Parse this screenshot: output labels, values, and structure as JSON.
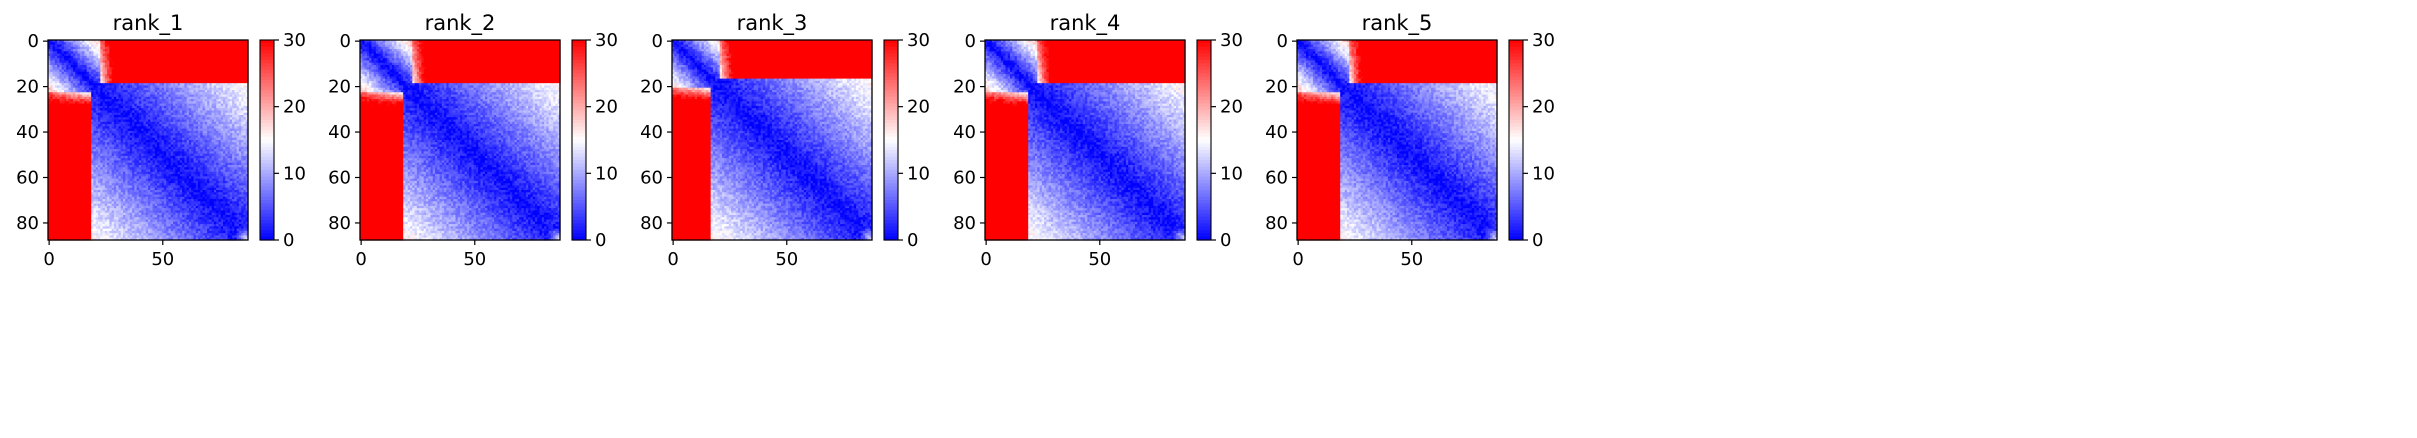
{
  "chart_data": [
    {
      "type": "heatmap",
      "title": "rank_1",
      "matrix_size": 88,
      "xticks": [
        "0",
        "50"
      ],
      "yticks": [
        "0",
        "20",
        "40",
        "60",
        "80"
      ],
      "colorbar": {
        "range": [
          0,
          30
        ],
        "ticks": [
          "0",
          "10",
          "20",
          "30"
        ],
        "colormap": "bwr"
      },
      "pattern": {
        "domain_boundary": 19,
        "near_block_mean": 13,
        "far_mean": 33
      }
    },
    {
      "type": "heatmap",
      "title": "rank_2",
      "matrix_size": 88,
      "xticks": [
        "0",
        "50"
      ],
      "yticks": [
        "0",
        "20",
        "40",
        "60",
        "80"
      ],
      "colorbar": {
        "range": [
          0,
          30
        ],
        "ticks": [
          "0",
          "10",
          "20",
          "30"
        ],
        "colormap": "bwr"
      },
      "pattern": {
        "domain_boundary": 19,
        "near_block_mean": 13,
        "far_mean": 33
      }
    },
    {
      "type": "heatmap",
      "title": "rank_3",
      "matrix_size": 88,
      "xticks": [
        "0",
        "50"
      ],
      "yticks": [
        "0",
        "20",
        "40",
        "60",
        "80"
      ],
      "colorbar": {
        "range": [
          0,
          30
        ],
        "ticks": [
          "0",
          "10",
          "20",
          "30"
        ],
        "colormap": "bwr"
      },
      "pattern": {
        "domain_boundary": 17,
        "near_block_mean": 13,
        "far_mean": 33
      }
    },
    {
      "type": "heatmap",
      "title": "rank_4",
      "matrix_size": 88,
      "xticks": [
        "0",
        "50"
      ],
      "yticks": [
        "0",
        "20",
        "40",
        "60",
        "80"
      ],
      "colorbar": {
        "range": [
          0,
          30
        ],
        "ticks": [
          "0",
          "10",
          "20",
          "30"
        ],
        "colormap": "bwr"
      },
      "pattern": {
        "domain_boundary": 19,
        "near_block_mean": 13,
        "far_mean": 33
      }
    },
    {
      "type": "heatmap",
      "title": "rank_5",
      "matrix_size": 88,
      "xticks": [
        "0",
        "50"
      ],
      "yticks": [
        "0",
        "20",
        "40",
        "60",
        "80"
      ],
      "colorbar": {
        "range": [
          0,
          30
        ],
        "ticks": [
          "0",
          "10",
          "20",
          "30"
        ],
        "colormap": "bwr"
      },
      "pattern": {
        "domain_boundary": 19,
        "near_block_mean": 13,
        "far_mean": 33
      }
    }
  ],
  "colors": {
    "low": "#0000ff",
    "mid": "#ffffff",
    "high": "#ff0000"
  }
}
